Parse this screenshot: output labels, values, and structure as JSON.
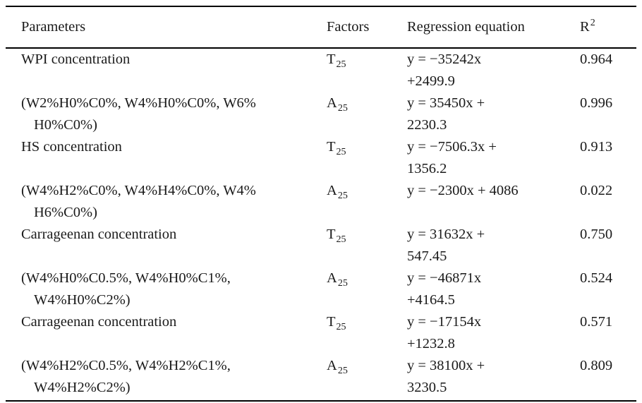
{
  "table": {
    "headers": {
      "parameters": "Parameters",
      "factors": "Factors",
      "regression_equation": "Regression equation",
      "r_base": "R",
      "r_sup": "2"
    },
    "rows": [
      {
        "param_line1": "WPI concentration",
        "param_line2": "",
        "factor": "T",
        "factor_sub": "25",
        "eq_line1": "y = −35242x",
        "eq_line2": "+2499.9",
        "r_squared": "0.964"
      },
      {
        "param_line1": "(W2%H0%C0%, W4%H0%C0%, W6%",
        "param_line2": "H0%C0%)",
        "factor": "A",
        "factor_sub": "25",
        "eq_line1": "y = 35450x +",
        "eq_line2": "2230.3",
        "r_squared": "0.996"
      },
      {
        "param_line1": "HS concentration",
        "param_line2": "",
        "factor": "T",
        "factor_sub": "25",
        "eq_line1": "y = −7506.3x +",
        "eq_line2": "1356.2",
        "r_squared": "0.913"
      },
      {
        "param_line1": "(W4%H2%C0%, W4%H4%C0%, W4%",
        "param_line2": "H6%C0%)",
        "factor": "A",
        "factor_sub": "25",
        "eq_line1": "y = −2300x + 4086",
        "eq_line2": "",
        "r_squared": "0.022"
      },
      {
        "param_line1": "Carrageenan concentration",
        "param_line2": "",
        "factor": "T",
        "factor_sub": "25",
        "eq_line1": "y = 31632x +",
        "eq_line2": "547.45",
        "r_squared": "0.750"
      },
      {
        "param_line1": "(W4%H0%C0.5%, W4%H0%C1%,",
        "param_line2": "W4%H0%C2%)",
        "factor": "A",
        "factor_sub": "25",
        "eq_line1": "y = −46871x",
        "eq_line2": "+4164.5",
        "r_squared": "0.524"
      },
      {
        "param_line1": "Carrageenan concentration",
        "param_line2": "",
        "factor": "T",
        "factor_sub": "25",
        "eq_line1": "y = −17154x",
        "eq_line2": "+1232.8",
        "r_squared": "0.571"
      },
      {
        "param_line1": "(W4%H2%C0.5%, W4%H2%C1%,",
        "param_line2": "W4%H2%C2%)",
        "factor": "A",
        "factor_sub": "25",
        "eq_line1": "y = 38100x +",
        "eq_line2": "3230.5",
        "r_squared": "0.809"
      }
    ]
  }
}
